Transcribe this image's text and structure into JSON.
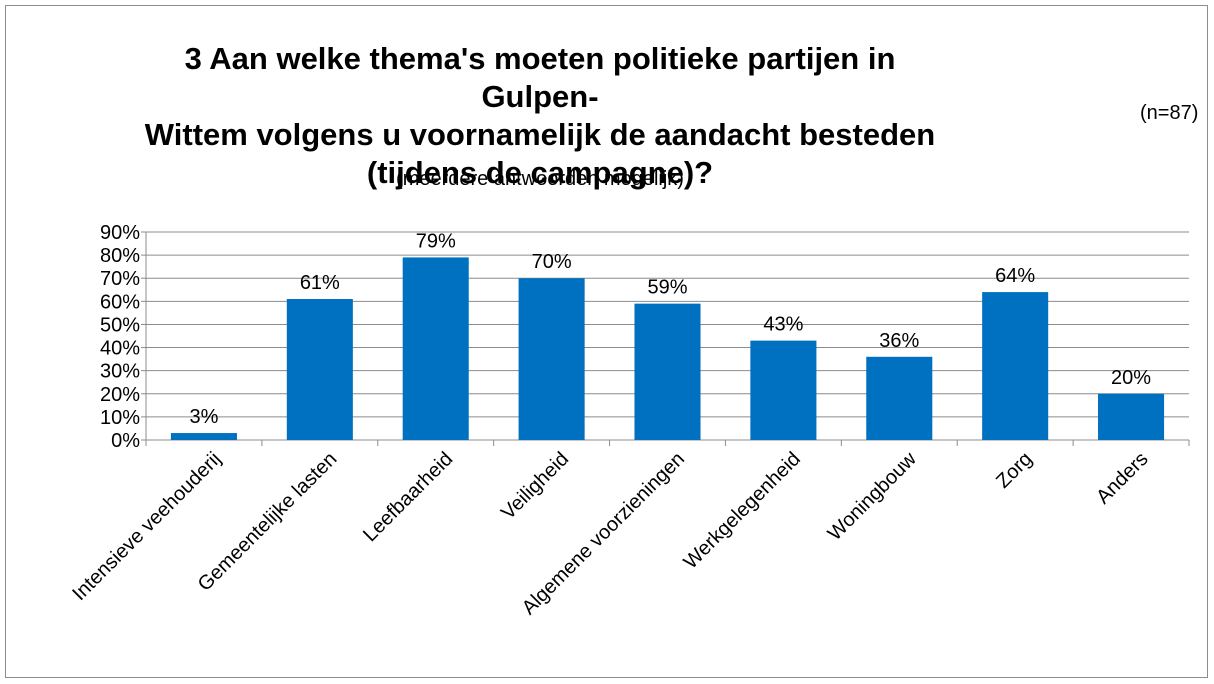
{
  "chart_data": {
    "type": "bar",
    "title_lines": [
      "3 Aan welke thema's moeten politieke partijen in Gulpen-",
      "Wittem volgens u voornamelijk de aandacht besteden",
      "(tijdens de campagne)?"
    ],
    "subtitle": "(meerdere antwoorden mogelijk)",
    "sample_size": "(n=87)",
    "categories": [
      "Intensieve veehouderij",
      "Gemeentelijke lasten",
      "Leefbaarheid",
      "Veiligheid",
      "Algemene voorzieningen",
      "Werkgelegenheid",
      "Woningbouw",
      "Zorg",
      "Anders"
    ],
    "values": [
      3,
      61,
      79,
      70,
      59,
      43,
      36,
      64,
      20
    ],
    "data_labels": [
      "3%",
      "61%",
      "79%",
      "70%",
      "59%",
      "43%",
      "36%",
      "64%",
      "20%"
    ],
    "yticks": [
      "0%",
      "10%",
      "20%",
      "30%",
      "40%",
      "50%",
      "60%",
      "70%",
      "80%",
      "90%"
    ],
    "ylim": [
      0,
      90
    ],
    "grid": true,
    "legend": "none",
    "bar_color": "#0070C0"
  }
}
